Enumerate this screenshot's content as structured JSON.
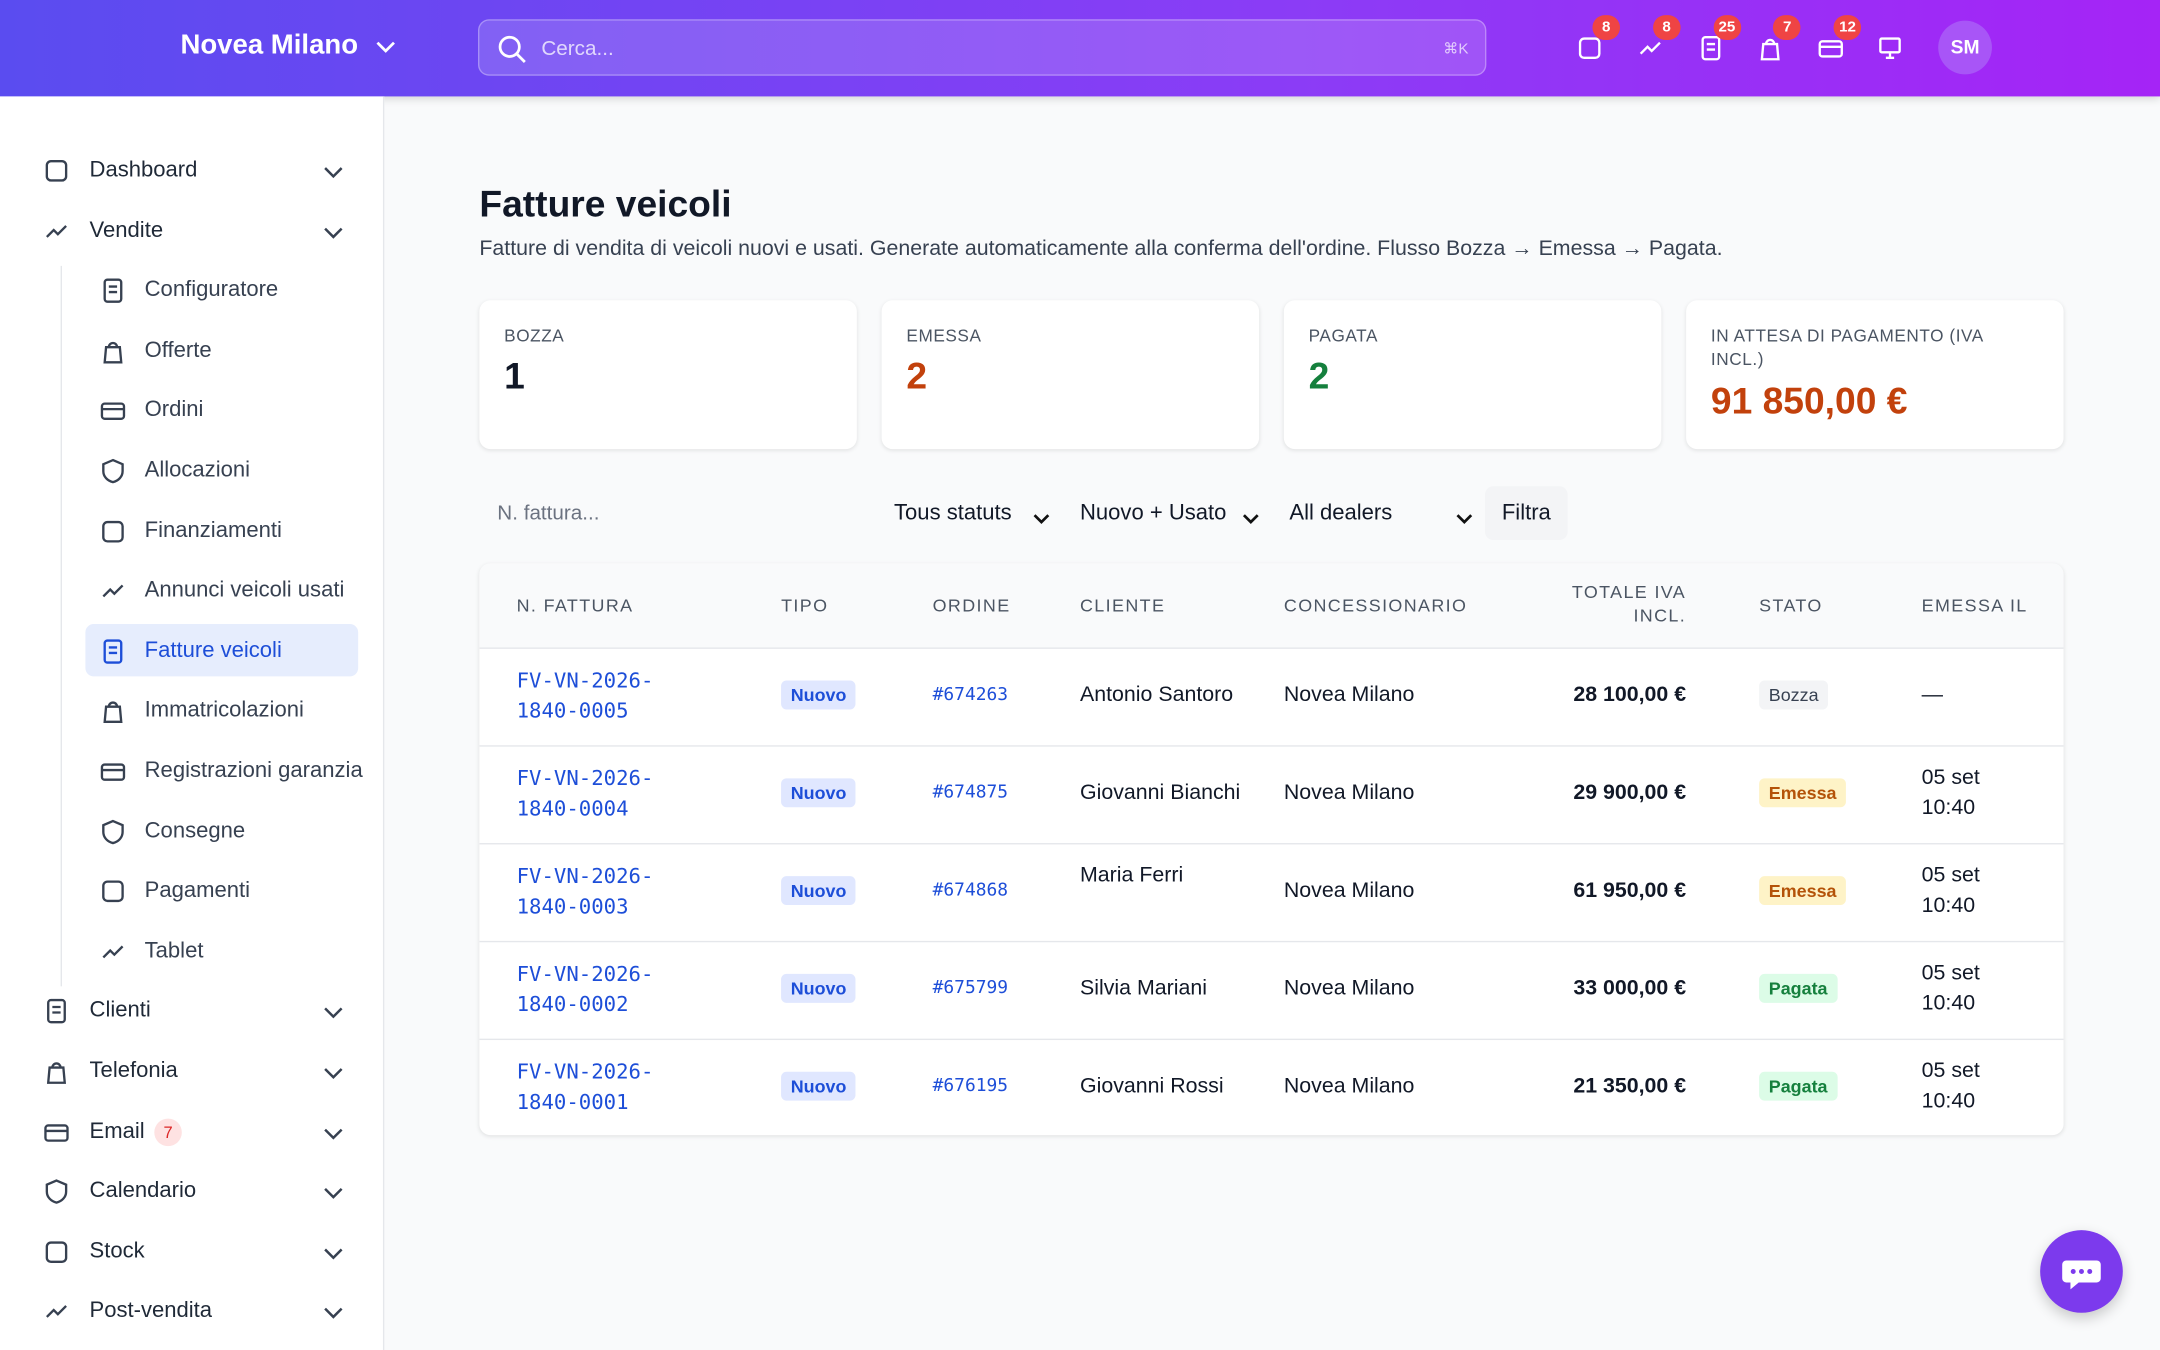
{
  "header": {
    "brand": "Novea Milano",
    "search_placeholder": "Cerca...",
    "search_shortcut": "⌘K",
    "badges": [
      8,
      8,
      25,
      7,
      12
    ],
    "avatar": "SM"
  },
  "sidebar": {
    "items": [
      {
        "label": "Dashboard"
      },
      {
        "label": "Vendite",
        "children": [
          "Configuratore",
          "Offerte",
          "Ordini",
          "Allocazioni",
          "Finanziamenti",
          "Annunci veicoli usati",
          "Fatture veicoli",
          "Immatricolazioni",
          "Registrazioni garanzia",
          "Consegne",
          "Pagamenti",
          "Tablet"
        ]
      },
      {
        "label": "Clienti"
      },
      {
        "label": "Telefonia"
      },
      {
        "label": "Email",
        "badge": 7
      },
      {
        "label": "Calendario"
      },
      {
        "label": "Stock"
      },
      {
        "label": "Post-vendita"
      }
    ]
  },
  "page": {
    "title": "Fatture veicoli",
    "subtitle": "Fatture di vendita di veicoli nuovi e usati. Generate automaticamente alla conferma dell'ordine. Flusso Bozza → Emessa → Pagata.",
    "stats": [
      {
        "label": "BOZZA",
        "value": 1
      },
      {
        "label": "EMESSA",
        "value": 2
      },
      {
        "label": "PAGATA",
        "value": 2
      },
      {
        "label": "IN ATTESA DI PAGAMENTO (IVA INCL.)",
        "value": "91 850,00 €"
      }
    ],
    "filters": {
      "search_placeholder": "N. fattura...",
      "selects": [
        "Tous statuts",
        "Nuovo + Usato",
        "All dealers"
      ],
      "button": "Filtra"
    },
    "table": {
      "headers": [
        "N. FATTURA",
        "TIPO",
        "ORDINE",
        "CLIENTE",
        "CONCESSIONARIO",
        "TOTALE IVA INCL.",
        "STATO",
        "EMESSA IL"
      ],
      "rows": [
        [
          "FV-VN-2026-1840-0005",
          "Nuovo",
          "#674263",
          "Antonio Santoro",
          "Novea Milano",
          "28 100,00 €",
          "Bozza",
          "—"
        ],
        [
          "FV-VN-2026-1840-0004",
          "Nuovo",
          "#674875",
          "Giovanni Bianchi",
          "Novea Milano",
          "29 900,00 €",
          "Emessa",
          "05 set 10:40"
        ],
        [
          "FV-VN-2026-1840-0003",
          "Nuovo",
          "#674868",
          "Maria Ferri",
          "Novea Milano",
          "61 950,00 €",
          "Emessa",
          "05 set 10:40"
        ],
        [
          "FV-VN-2026-1840-0002",
          "Nuovo",
          "#675799",
          "Silvia Mariani",
          "Novea Milano",
          "33 000,00 €",
          "Pagata",
          "05 set 10:40"
        ],
        [
          "FV-VN-2026-1840-0001",
          "Nuovo",
          "#676195",
          "Giovanni Rossi",
          "Novea Milano",
          "21 350,00 €",
          "Pagata",
          "05 set 10:40"
        ]
      ]
    }
  }
}
